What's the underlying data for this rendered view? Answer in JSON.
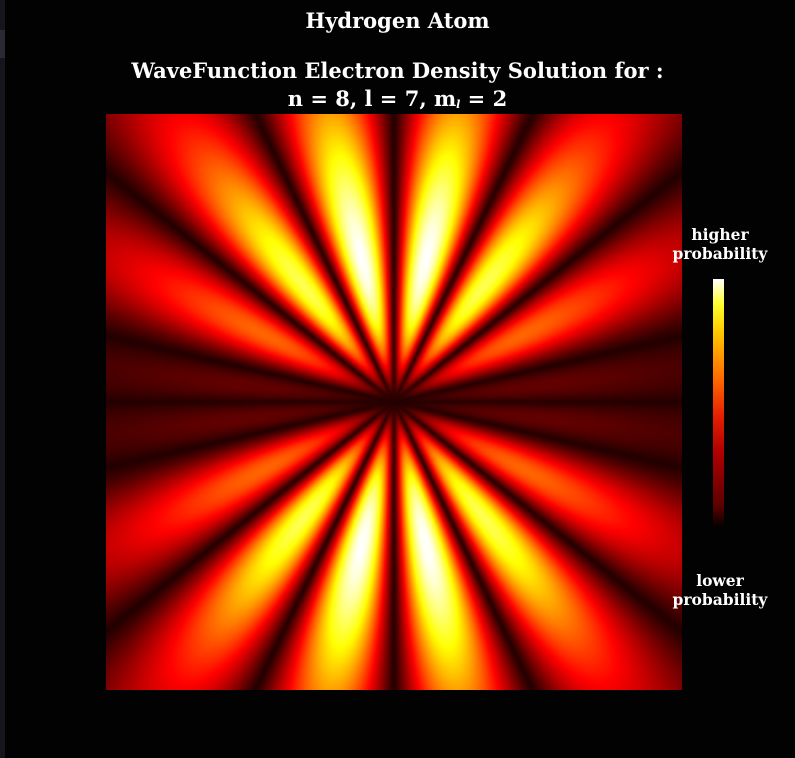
{
  "title": "Hydrogen Atom",
  "subtitle": "WaveFunction Electron Density Solution for :",
  "quantum_numbers": {
    "n_label": "n = 8, l = 7, m",
    "m_subscript": "l",
    "m_value": " = 2"
  },
  "colorbar": {
    "high_label": "higher\nprobability",
    "low_label": "lower\nprobability",
    "colormap": [
      "#000000",
      "#b00000",
      "#ff6a00",
      "#ffff30",
      "#ffffff"
    ]
  },
  "density_plot": {
    "n": 8,
    "l": 7,
    "m": 2,
    "colormap": "hot",
    "background": "#0c0000"
  }
}
